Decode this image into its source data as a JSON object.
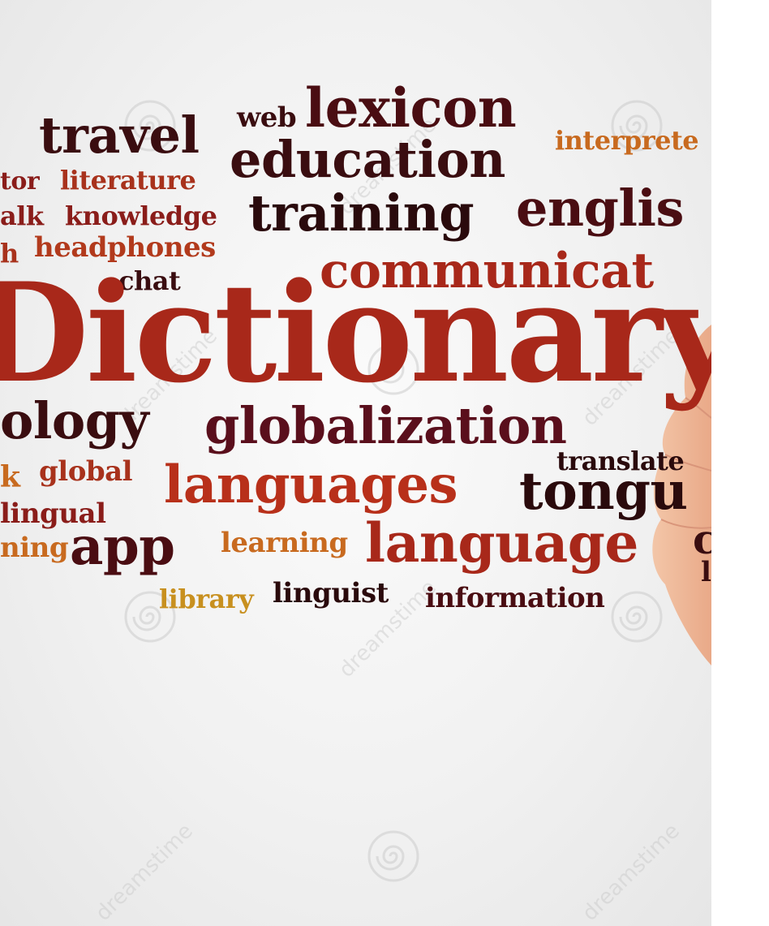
{
  "word_cloud": [
    {
      "text": "travel",
      "color": "#3a0d10"
    },
    {
      "text": "web",
      "color": "#3a0d10"
    },
    {
      "text": "lexicon",
      "color": "#4a0d12"
    },
    {
      "text": "interprete",
      "color": "#c86a1f"
    },
    {
      "text": "education",
      "color": "#3a0d10"
    },
    {
      "text": "tor",
      "color": "#8a1d1a"
    },
    {
      "text": "literature",
      "color": "#a8321c"
    },
    {
      "text": "alk",
      "color": "#8a1d1a"
    },
    {
      "text": "knowledge",
      "color": "#8a1d1a"
    },
    {
      "text": "training",
      "color": "#2a0a0c"
    },
    {
      "text": "englis",
      "color": "#4a0d12"
    },
    {
      "text": "h",
      "color": "#a8321c"
    },
    {
      "text": "headphones",
      "color": "#b23a1c"
    },
    {
      "text": "chat",
      "color": "#3a0d10"
    },
    {
      "text": "communicat",
      "color": "#a8281a"
    },
    {
      "text": "Dictionary",
      "color": "#a8281a"
    },
    {
      "text": "ology",
      "color": "#3a0d10"
    },
    {
      "text": "globalization",
      "color": "#5a0f1c"
    },
    {
      "text": "translate",
      "color": "#2a0a0c"
    },
    {
      "text": "k",
      "color": "#c86a1f"
    },
    {
      "text": "global",
      "color": "#a8321c"
    },
    {
      "text": "languages",
      "color": "#b8301a"
    },
    {
      "text": "tongu",
      "color": "#2a0a0c"
    },
    {
      "text": "lingual",
      "color": "#8a1d1a"
    },
    {
      "text": "ning",
      "color": "#c86a1f"
    },
    {
      "text": "app",
      "color": "#4a0d12"
    },
    {
      "text": "learning",
      "color": "#c86a1f"
    },
    {
      "text": "language",
      "color": "#a8281a"
    },
    {
      "text": "c",
      "color": "#3a0d10"
    },
    {
      "text": "l",
      "color": "#3a0d10"
    },
    {
      "text": "library",
      "color": "#c8901f"
    },
    {
      "text": "linguist",
      "color": "#2a0a0c"
    },
    {
      "text": "information",
      "color": "#4a0d12"
    }
  ],
  "watermark": {
    "text": "dreamstime"
  }
}
